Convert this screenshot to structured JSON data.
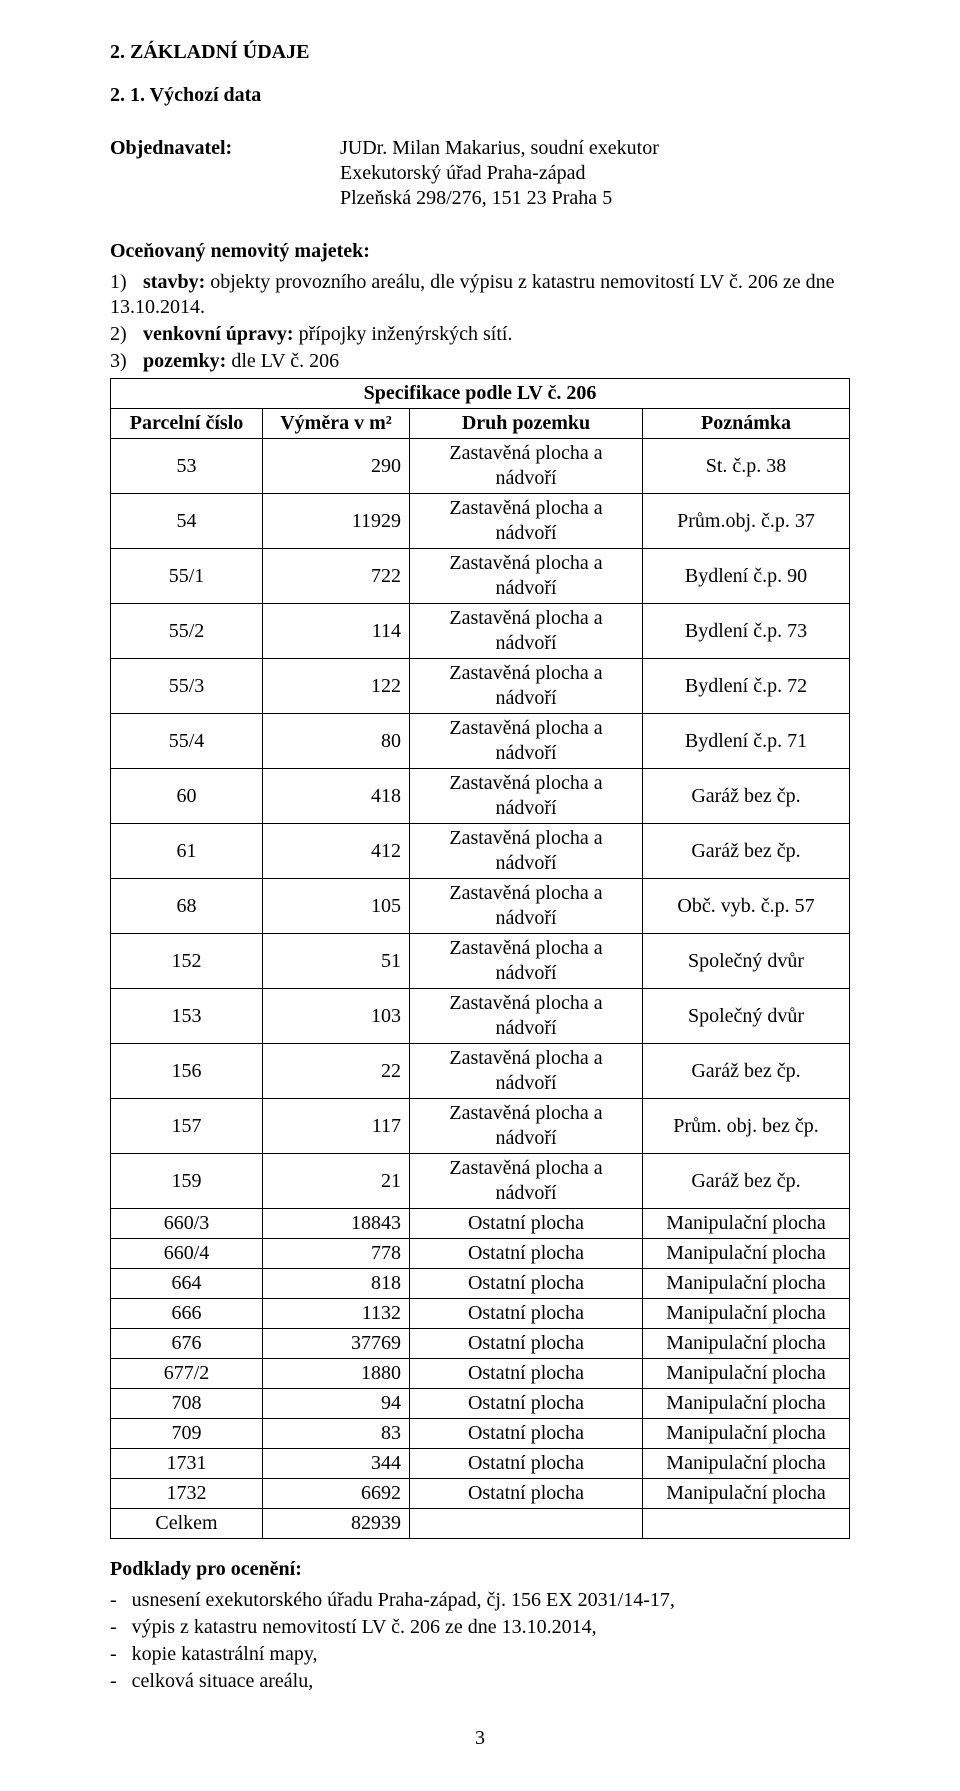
{
  "title_section": "2.  ZÁKLADNÍ ÚDAJE",
  "subsection": "2. 1.    Výchozí data",
  "objednavatel_label": "Objednavatel:",
  "objednavatel_lines": [
    "JUDr. Milan Makarius, soudní exekutor",
    "Exekutorský úřad Praha-západ",
    "Plzeňská 298/276, 151 23 Praha 5"
  ],
  "ocen_heading": "Oceňovaný nemovitý majetek:",
  "items": [
    {
      "num": "1)",
      "lead": "stavby:",
      "text": " objekty provozního areálu, dle výpisu z katastru nemovitostí LV č. 206 ze dne 13.10.2014."
    },
    {
      "num": "2)",
      "lead": "venkovní úpravy:",
      "text": " přípojky inženýrských sítí."
    },
    {
      "num": "3)",
      "lead": "pozemky:",
      "text": " dle LV č. 206"
    }
  ],
  "table": {
    "title": "Specifikace  podle LV č. 206",
    "columns": [
      "Parcelní číslo",
      "Výměra v m²",
      "Druh pozemku",
      "Poznámka"
    ],
    "col_align": [
      "center",
      "right",
      "center",
      "center"
    ],
    "rows": [
      [
        "53",
        "290",
        "Zastavěná plocha a nádvoří",
        "St. č.p. 38"
      ],
      [
        "54",
        "11929",
        "Zastavěná plocha a nádvoří",
        "Prům.obj. č.p. 37"
      ],
      [
        "55/1",
        "722",
        "Zastavěná plocha a nádvoří",
        "Bydlení č.p. 90"
      ],
      [
        "55/2",
        "114",
        "Zastavěná plocha a nádvoří",
        "Bydlení č.p. 73"
      ],
      [
        "55/3",
        "122",
        "Zastavěná plocha a nádvoří",
        "Bydlení č.p. 72"
      ],
      [
        "55/4",
        "80",
        "Zastavěná plocha a nádvoří",
        "Bydlení č.p. 71"
      ],
      [
        "60",
        "418",
        "Zastavěná plocha a nádvoří",
        "Garáž bez čp."
      ],
      [
        "61",
        "412",
        "Zastavěná plocha a nádvoří",
        "Garáž bez čp."
      ],
      [
        "68",
        "105",
        "Zastavěná plocha a nádvoří",
        "Obč. vyb. č.p. 57"
      ],
      [
        "152",
        "51",
        "Zastavěná plocha a nádvoří",
        "Společný dvůr"
      ],
      [
        "153",
        "103",
        "Zastavěná plocha a nádvoří",
        "Společný dvůr"
      ],
      [
        "156",
        "22",
        "Zastavěná plocha a nádvoří",
        "Garáž bez čp."
      ],
      [
        "157",
        "117",
        "Zastavěná plocha a nádvoří",
        "Prům. obj. bez čp."
      ],
      [
        "159",
        "21",
        "Zastavěná plocha a nádvoří",
        "Garáž bez čp."
      ],
      [
        "660/3",
        "18843",
        "Ostatní plocha",
        "Manipulační plocha"
      ],
      [
        "660/4",
        "778",
        "Ostatní plocha",
        "Manipulační plocha"
      ],
      [
        "664",
        "818",
        "Ostatní plocha",
        "Manipulační plocha"
      ],
      [
        "666",
        "1132",
        "Ostatní plocha",
        "Manipulační plocha"
      ],
      [
        "676",
        "37769",
        "Ostatní plocha",
        "Manipulační plocha"
      ],
      [
        "677/2",
        "1880",
        "Ostatní plocha",
        "Manipulační plocha"
      ],
      [
        "708",
        "94",
        "Ostatní plocha",
        "Manipulační plocha"
      ],
      [
        "709",
        "83",
        "Ostatní plocha",
        "Manipulační plocha"
      ],
      [
        "1731",
        "344",
        "Ostatní plocha",
        "Manipulační plocha"
      ],
      [
        "1732",
        "6692",
        "Ostatní plocha",
        "Manipulační plocha"
      ]
    ],
    "total_row": [
      "Celkem",
      "82939",
      "",
      ""
    ]
  },
  "podklady_title": "Podklady pro ocenění:",
  "podklady_items": [
    "usnesení exekutorského úřadu Praha-západ, čj. 156 EX 2031/14-17,",
    "výpis z katastru nemovitostí LV č. 206  ze dne 13.10.2014,",
    "kopie katastrální mapy,",
    "celková situace areálu,"
  ],
  "page_number": "3"
}
